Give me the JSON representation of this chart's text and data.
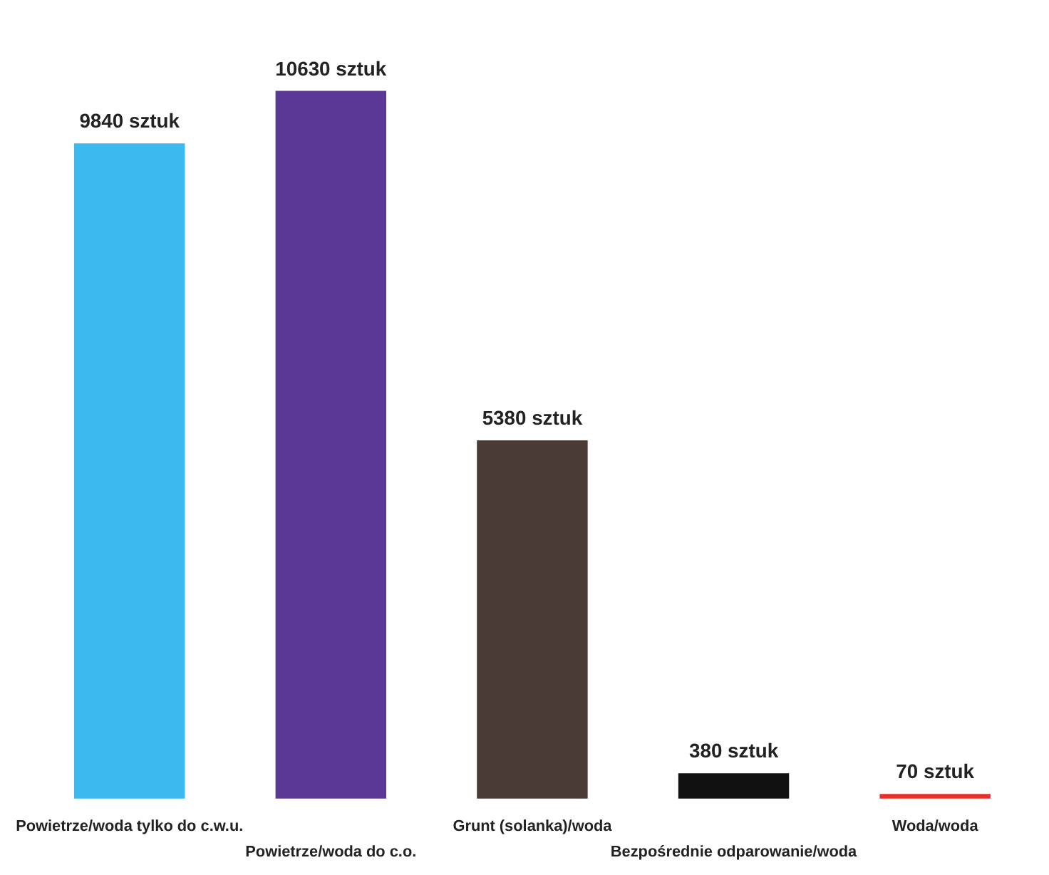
{
  "chart_data": {
    "type": "bar",
    "categories": [
      "Powietrze/woda tylko do c.w.u.",
      "Powietrze/woda do c.o.",
      "Grunt (solanka)/woda",
      "Bezpośrednie odparowanie/woda",
      "Woda/woda"
    ],
    "values": [
      9840,
      10630,
      5380,
      380,
      70
    ],
    "colors": [
      "#3cb9ef",
      "#5b3896",
      "#4b3b36",
      "#111111",
      "#e8302a"
    ],
    "value_labels": [
      "9840 sztuk",
      "10630 sztuk",
      "5380 sztuk",
      "380 sztuk",
      "70 sztuk"
    ]
  }
}
